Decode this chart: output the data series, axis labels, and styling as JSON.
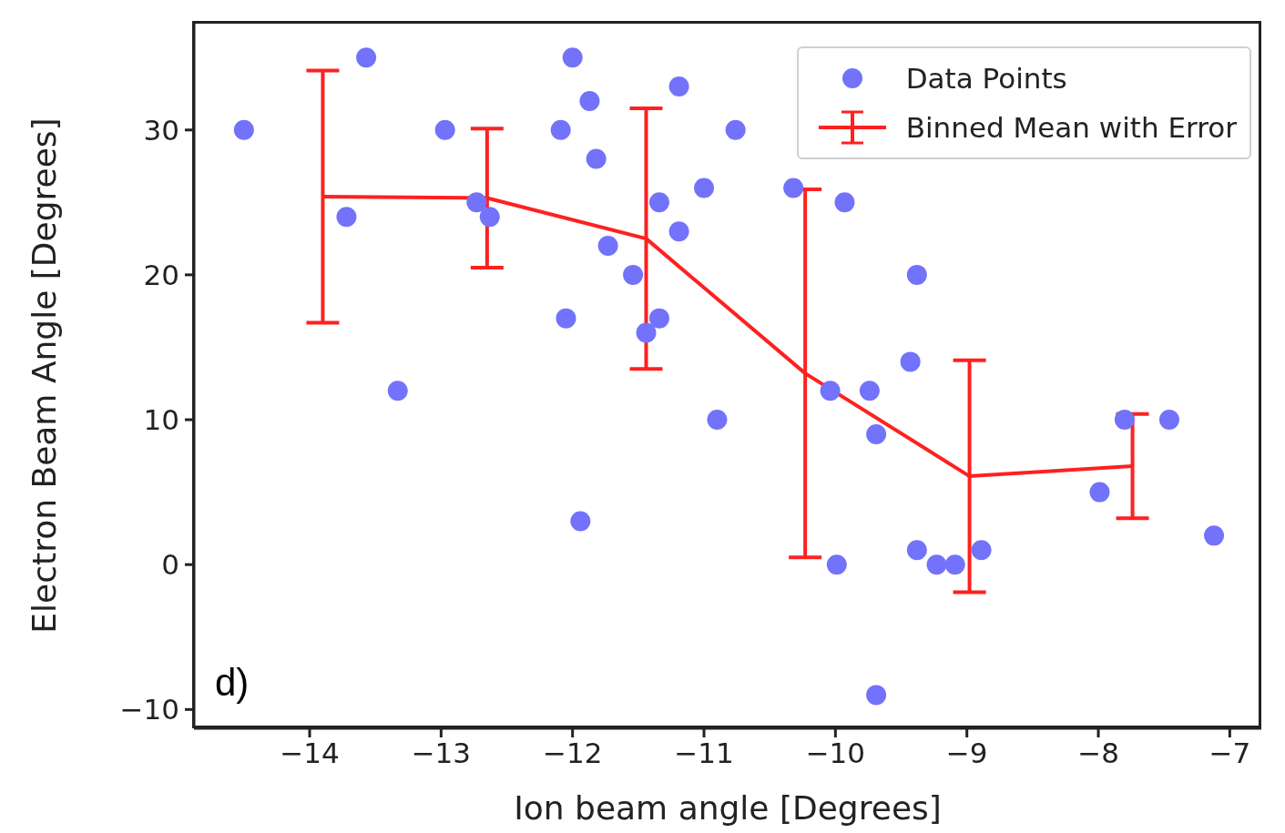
{
  "chart_data": {
    "type": "scatter",
    "xlabel": "Ion beam angle [Degrees]",
    "ylabel": "Electron Beam Angle [Degrees]",
    "annotations": [
      "d)"
    ],
    "xlim": [
      -14.88,
      -6.76
    ],
    "ylim": [
      -11.3,
      37.4
    ],
    "xticks": [
      {
        "value": -14,
        "label": "−14"
      },
      {
        "value": -13,
        "label": "−13"
      },
      {
        "value": -12,
        "label": "−12"
      },
      {
        "value": -11,
        "label": "−11"
      },
      {
        "value": -10,
        "label": "−10"
      },
      {
        "value": -9,
        "label": "−9"
      },
      {
        "value": -8,
        "label": "−8"
      },
      {
        "value": -7,
        "label": "−7"
      }
    ],
    "yticks": [
      {
        "value": -10,
        "label": "−10"
      },
      0,
      10,
      20,
      30
    ],
    "grid": false,
    "legend": "top right",
    "series": [
      {
        "name": "Data Points",
        "marker": "circle",
        "color": "#7272fa",
        "x": [
          -14.5,
          -13.57,
          -13.72,
          -13.33,
          -12.97,
          -12.73,
          -12.63,
          -12.09,
          -12.0,
          -11.87,
          -11.82,
          -11.94,
          -12.05,
          -11.73,
          -11.54,
          -11.44,
          -11.34,
          -11.34,
          -11.19,
          -11.19,
          -11.0,
          -10.9,
          -10.76,
          -10.32,
          -9.93,
          -10.04,
          -9.99,
          -9.74,
          -9.69,
          -9.69,
          -9.38,
          -9.43,
          -9.38,
          -9.23,
          -9.09,
          -8.89,
          -7.99,
          -7.8,
          -7.46,
          -7.12
        ],
        "values": [
          30,
          35,
          24,
          12,
          30,
          25,
          24,
          30,
          35,
          32,
          28,
          3,
          17,
          22,
          20,
          16,
          17,
          25,
          23,
          33,
          26,
          10,
          30,
          26,
          25,
          12,
          0,
          12,
          9,
          -9,
          20,
          14,
          1,
          0,
          0,
          1,
          5,
          10,
          10,
          2
        ]
      },
      {
        "name": "Binned Mean with Error",
        "type": "line",
        "marker": "none",
        "line_style": "solid",
        "color": "#ff2020",
        "x": [
          -13.9,
          -12.65,
          -11.44,
          -10.23,
          -8.98,
          -7.74
        ],
        "values": [
          25.4,
          25.3,
          22.5,
          13.2,
          6.1,
          6.8
        ],
        "errors": [
          8.7,
          4.8,
          9.0,
          12.7,
          8.0,
          3.6
        ]
      }
    ]
  }
}
